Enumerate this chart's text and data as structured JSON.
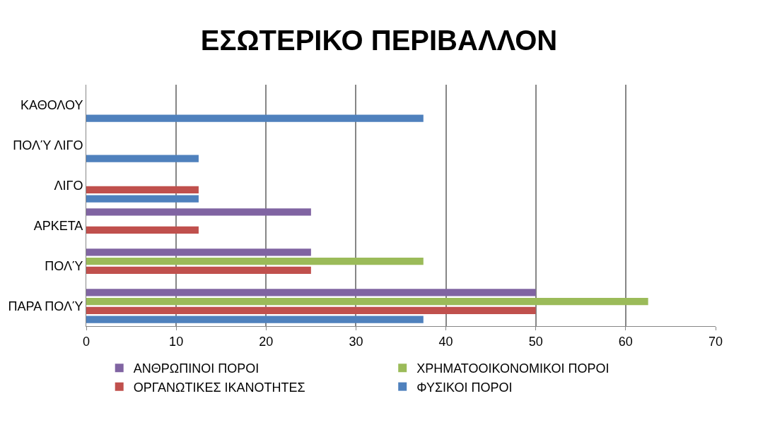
{
  "chart_data": {
    "type": "bar",
    "orientation": "horizontal",
    "title": "ΕΣΩΤΕΡΙΚΟ ΠΕΡΙΒΑΛΛΟΝ",
    "categories": [
      "ΚΑΘΟΛΟΥ",
      "ΠΟΛΎ ΛΙΓΟ",
      "ΛΙΓΟ",
      "ΑΡΚΕΤΑ",
      "ΠΟΛΎ",
      "ΠΑΡΑ ΠΟΛΎ"
    ],
    "series": [
      {
        "name": "ΦΥΣΙΚΟΙ ΠΟΡΟΙ",
        "color": "#4f81bd",
        "values": [
          37.5,
          12.5,
          12.5,
          0,
          0,
          37.5
        ]
      },
      {
        "name": "ΟΡΓΑΝΩΤΙΚΕΣ ΙΚΑΝΟΤΗΤΕΣ",
        "color": "#c0504d",
        "values": [
          0,
          0,
          12.5,
          12.5,
          25,
          50
        ]
      },
      {
        "name": "ΧΡΗΜΑΤΟΟΙΚΟΝΟΜΙΚΟΙ ΠΟΡΟΙ",
        "color": "#9bbb59",
        "values": [
          0,
          0,
          0,
          0,
          37.5,
          62.5
        ]
      },
      {
        "name": "ΑΝΘΡΩΠΙΝΟΙ ΠΟΡΟΙ",
        "color": "#8064a2",
        "values": [
          0,
          0,
          0,
          25,
          25,
          50
        ]
      }
    ],
    "xlim": [
      0,
      70
    ],
    "xticks": [
      0,
      10,
      20,
      30,
      40,
      50,
      60,
      70
    ],
    "grid": "x",
    "legend": "bottom"
  }
}
